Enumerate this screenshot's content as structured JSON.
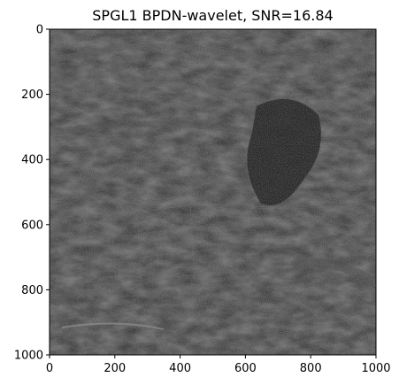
{
  "figure": {
    "title": "SPGL1 BPDN-wavelet, SNR=16.84",
    "x_ticks": [
      "0",
      "200",
      "400",
      "600",
      "800",
      "1000"
    ],
    "y_ticks": [
      "0",
      "200",
      "400",
      "600",
      "800",
      "1000"
    ],
    "x_range": [
      0,
      1000
    ],
    "y_range": [
      0,
      1000
    ],
    "image": {
      "description_colors": {
        "background": "#1c1c1c",
        "highlight": "#8a8a8a",
        "dark_region": "#0a0a0a"
      }
    }
  }
}
